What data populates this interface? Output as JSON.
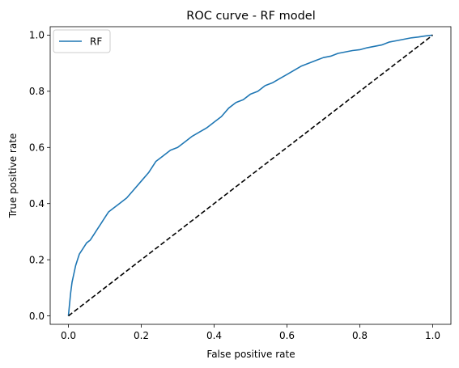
{
  "chart_data": {
    "type": "line",
    "title": "ROC curve - RF model",
    "xlabel": "False positive rate",
    "ylabel": "True positive rate",
    "xlim": [
      -0.05,
      1.05
    ],
    "ylim": [
      -0.03,
      1.03
    ],
    "xticks": [
      0.0,
      0.2,
      0.4,
      0.6,
      0.8,
      1.0
    ],
    "yticks": [
      0.0,
      0.2,
      0.4,
      0.6,
      0.8,
      1.0
    ],
    "xtick_labels": [
      "0.0",
      "0.2",
      "0.4",
      "0.6",
      "0.8",
      "1.0"
    ],
    "ytick_labels": [
      "0.0",
      "0.2",
      "0.4",
      "0.6",
      "0.8",
      "1.0"
    ],
    "grid": false,
    "legend_position": "top-left",
    "series": [
      {
        "name": "RF",
        "color": "#1f77b4",
        "style": "solid",
        "x": [
          0.0,
          0.003,
          0.006,
          0.01,
          0.015,
          0.02,
          0.025,
          0.03,
          0.04,
          0.05,
          0.06,
          0.07,
          0.08,
          0.09,
          0.1,
          0.11,
          0.12,
          0.14,
          0.16,
          0.18,
          0.2,
          0.22,
          0.24,
          0.26,
          0.28,
          0.3,
          0.32,
          0.34,
          0.36,
          0.38,
          0.4,
          0.42,
          0.44,
          0.46,
          0.48,
          0.5,
          0.52,
          0.54,
          0.56,
          0.58,
          0.6,
          0.62,
          0.64,
          0.66,
          0.68,
          0.7,
          0.72,
          0.74,
          0.76,
          0.78,
          0.8,
          0.82,
          0.84,
          0.86,
          0.88,
          0.9,
          0.92,
          0.94,
          0.96,
          0.98,
          1.0
        ],
        "y": [
          0.0,
          0.04,
          0.08,
          0.12,
          0.15,
          0.18,
          0.2,
          0.22,
          0.24,
          0.26,
          0.27,
          0.29,
          0.31,
          0.33,
          0.35,
          0.37,
          0.38,
          0.4,
          0.42,
          0.45,
          0.48,
          0.51,
          0.55,
          0.57,
          0.59,
          0.6,
          0.62,
          0.64,
          0.655,
          0.67,
          0.69,
          0.71,
          0.74,
          0.76,
          0.77,
          0.79,
          0.8,
          0.82,
          0.83,
          0.845,
          0.86,
          0.875,
          0.89,
          0.9,
          0.91,
          0.92,
          0.925,
          0.935,
          0.94,
          0.945,
          0.948,
          0.955,
          0.96,
          0.965,
          0.975,
          0.98,
          0.985,
          0.99,
          0.993,
          0.997,
          1.0
        ]
      },
      {
        "name": "",
        "color": "#000000",
        "style": "dashed",
        "x": [
          0.0,
          1.0
        ],
        "y": [
          0.0,
          1.0
        ]
      }
    ]
  }
}
